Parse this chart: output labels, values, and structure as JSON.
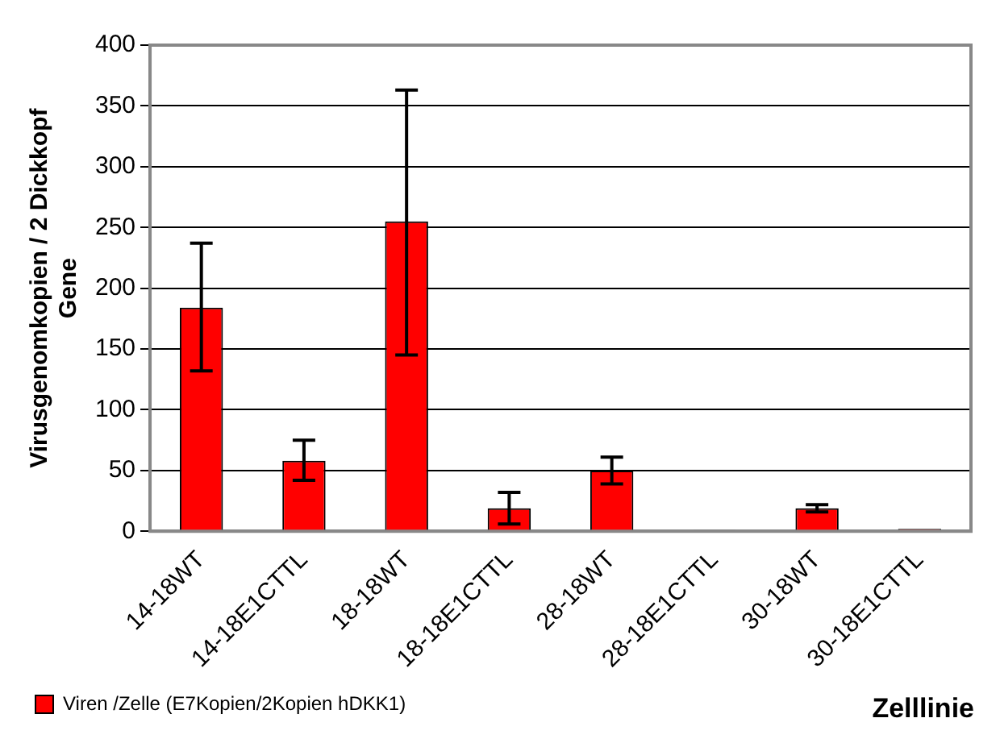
{
  "chart_data": {
    "type": "bar",
    "ylabel": "Virusgenomkopien / 2 Dickkopf Gene",
    "xlabel": "Zelllinie",
    "categories": [
      "14-18WT",
      "14-18E1CTTL",
      "18-18WT",
      "18-18E1CTTL",
      "28-18WT",
      "28-18E1CTTL",
      "30-18WT",
      "30-18E1CTTL"
    ],
    "series": [
      {
        "name": "Viren /Zelle (E7Kopien/2Kopien hDKK1)",
        "color": "#ff0000",
        "values": [
          184,
          58,
          255,
          19,
          50,
          1,
          19,
          2
        ],
        "errors": [
          [
            132,
            237
          ],
          [
            42,
            75
          ],
          [
            145,
            363
          ],
          [
            6,
            32
          ],
          [
            39,
            61
          ],
          null,
          [
            16,
            22
          ],
          null
        ]
      }
    ],
    "ylim": [
      0,
      400
    ],
    "yticks": [
      0,
      50,
      100,
      150,
      200,
      250,
      300,
      350,
      400
    ],
    "grid": "y",
    "legend": "bottom left"
  }
}
